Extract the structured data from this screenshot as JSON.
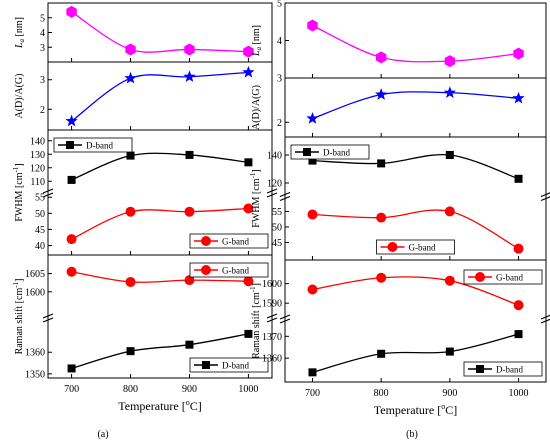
{
  "figure": {
    "x_axis_label": "Temperature [°C]",
    "x_ticks": [
      700,
      800,
      900,
      1000
    ]
  },
  "chart_data": [
    {
      "type": "line",
      "panel_label": "(a)",
      "x": [
        700,
        800,
        900,
        1000
      ],
      "xlabel": "Temperature [°C]",
      "subplots": [
        {
          "id": "La",
          "ylabel": "La [nm]",
          "ylim": [
            2,
            6
          ],
          "yticks": [
            3,
            4,
            5
          ],
          "series": [
            {
              "values": [
                5.4,
                2.85,
                2.85,
                2.7
              ],
              "color": "#ff00ff",
              "marker": "hexagon"
            }
          ]
        },
        {
          "id": "ratio",
          "ylabel": "A(D)/A(G)",
          "ylim": [
            1.3,
            3.6
          ],
          "yticks": [
            2,
            3
          ],
          "series": [
            {
              "values": [
                1.6,
                3.05,
                3.1,
                3.25
              ],
              "color": "#0000ff",
              "marker": "star"
            }
          ]
        },
        {
          "id": "fwhm_a",
          "ylabel": "FWHM [cm⁻¹]",
          "split": true,
          "segments": [
            {
              "ylim": [
                105,
                145
              ],
              "yticks": [
                110,
                120,
                130,
                140
              ]
            },
            {
              "ylim": [
                38,
                56
              ],
              "yticks": [
                40,
                45,
                50,
                55
              ]
            }
          ],
          "series": [
            {
              "name": "D-band",
              "values": [
                111,
                129,
                129.5,
                124
              ],
              "color": "#000000",
              "marker": "square",
              "segment": 0,
              "legend": "top-left"
            },
            {
              "name": "G-band",
              "values": [
                42,
                50.5,
                50.5,
                51.5
              ],
              "color": "#ff0000",
              "marker": "circle",
              "segment": 1,
              "legend": "bottom-right"
            }
          ]
        },
        {
          "id": "shift_a",
          "ylabel": "Raman shift [cm⁻¹]",
          "split": true,
          "segments": [
            {
              "ylim": [
                1595,
                1609
              ],
              "yticks": [
                1600,
                1605
              ]
            },
            {
              "ylim": [
                1349,
                1374
              ],
              "yticks": [
                1350,
                1360
              ]
            }
          ],
          "series": [
            {
              "name": "G-band",
              "values": [
                1605.5,
                1602.7,
                1603.2,
                1602.9
              ],
              "color": "#ff0000",
              "marker": "circle",
              "segment": 0,
              "legend": "top-right"
            },
            {
              "name": "D-band",
              "values": [
                1352.5,
                1360.5,
                1363.5,
                1368.5
              ],
              "color": "#000000",
              "marker": "square",
              "segment": 1,
              "legend": "bottom-right"
            }
          ]
        }
      ]
    },
    {
      "type": "line",
      "panel_label": "(b)",
      "x": [
        700,
        800,
        900,
        1000
      ],
      "xlabel": "Temperature [°C]",
      "subplots": [
        {
          "id": "La",
          "ylabel": "La [nm]",
          "ylim": [
            3,
            5
          ],
          "yticks": [
            3,
            4,
            5
          ],
          "series": [
            {
              "values": [
                4.4,
                3.55,
                3.45,
                3.65
              ],
              "color": "#ff00ff",
              "marker": "hexagon"
            }
          ]
        },
        {
          "id": "ratio",
          "ylabel": "A(D)/A(G)",
          "ylim": [
            1.6,
            3.2
          ],
          "yticks": [
            2
          ],
          "series": [
            {
              "values": [
                2.1,
                2.75,
                2.8,
                2.65
              ],
              "color": "#0000ff",
              "marker": "star"
            }
          ]
        },
        {
          "id": "fwhm_b",
          "ylabel": "FWHM [cm⁻¹]",
          "split": true,
          "segments": [
            {
              "ylim": [
                115,
                150
              ],
              "yticks": [
                120,
                140
              ]
            },
            {
              "ylim": [
                40,
                59
              ],
              "yticks": [
                45,
                50,
                55
              ]
            }
          ],
          "series": [
            {
              "name": "D-band",
              "values": [
                136,
                134,
                140,
                123
              ],
              "color": "#000000",
              "marker": "square",
              "segment": 0,
              "legend": "top-left"
            },
            {
              "name": "G-band",
              "values": [
                54,
                53,
                55,
                43
              ],
              "color": "#ff0000",
              "marker": "circle",
              "segment": 1,
              "legend": "bottom-center"
            }
          ]
        },
        {
          "id": "shift_b",
          "ylabel": "Raman shift [cm⁻¹]",
          "split": true,
          "segments": [
            {
              "ylim": [
                1585,
                1609
              ],
              "yticks": [
                1590,
                1600
              ]
            },
            {
              "ylim": [
                1350,
                1377
              ],
              "yticks": [
                1360,
                1370
              ]
            }
          ],
          "series": [
            {
              "name": "G-band",
              "values": [
                1597,
                1603,
                1601.5,
                1589
              ],
              "color": "#ff0000",
              "marker": "circle",
              "segment": 0,
              "legend": "top-right"
            },
            {
              "name": "D-band",
              "values": [
                1353.5,
                1362,
                1363,
                1371
              ],
              "color": "#000000",
              "marker": "square",
              "segment": 1,
              "legend": "bottom-right"
            }
          ]
        }
      ]
    }
  ]
}
